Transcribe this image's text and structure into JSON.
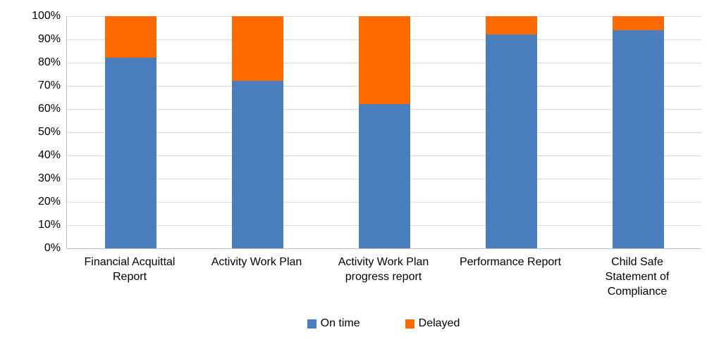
{
  "chart_data": {
    "type": "bar",
    "subtype": "stacked-100-percent",
    "title": "",
    "xlabel": "",
    "ylabel": "",
    "categories": [
      "Financial Acquittal Report",
      "Activity Work Plan",
      "Activity Work Plan progress report",
      "Performance Report",
      "Child Safe Statement of Compliance"
    ],
    "series": [
      {
        "name": "On time",
        "color": "#4a7ebd",
        "values": [
          82,
          72,
          62,
          92,
          94
        ]
      },
      {
        "name": "Delayed",
        "color": "#ff6a00",
        "values": [
          18,
          28,
          38,
          8,
          6
        ]
      }
    ],
    "y_axis": {
      "min": 0,
      "max": 100,
      "step": 10,
      "tick_labels": [
        "0%",
        "10%",
        "20%",
        "30%",
        "40%",
        "50%",
        "60%",
        "70%",
        "80%",
        "90%",
        "100%"
      ]
    },
    "grid": true,
    "legend_position": "bottom",
    "legend": [
      "On time",
      "Delayed"
    ]
  },
  "colors": {
    "gridline": "#d9d9d9",
    "axis_line": "#bfbfbf",
    "text": "#000000",
    "background": "#ffffff",
    "on_time": "#4a7ebd",
    "delayed": "#ff6a00"
  }
}
